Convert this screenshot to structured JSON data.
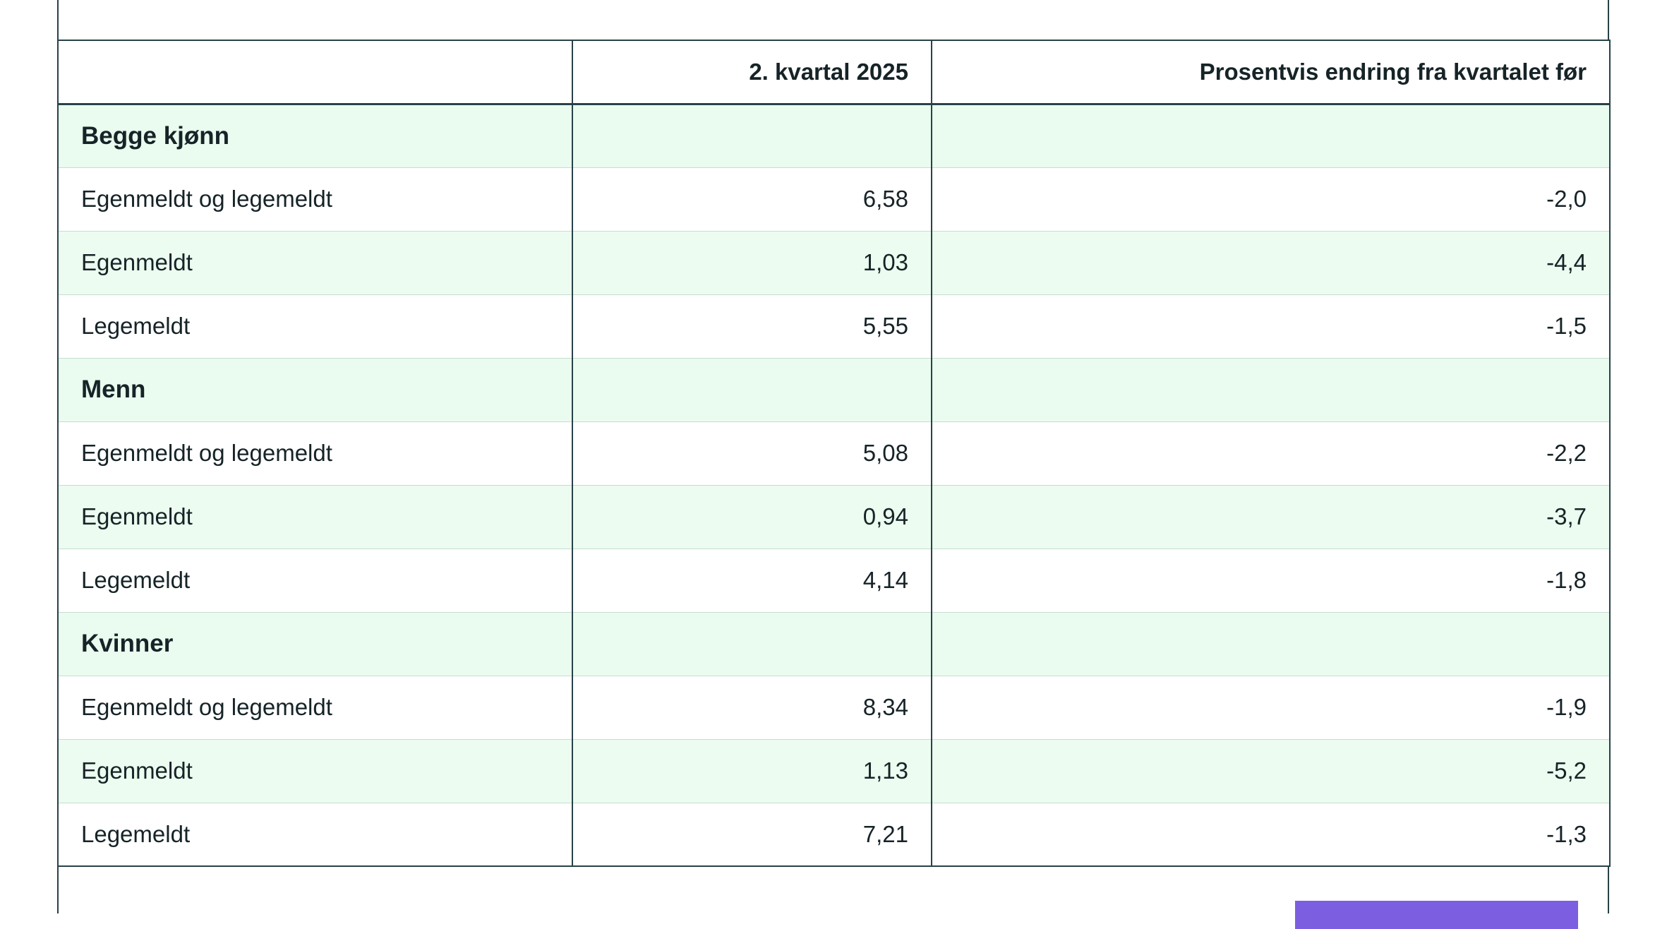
{
  "table": {
    "headers": [
      "",
      "2. kvartal 2025",
      "Prosentvis endring fra kvartalet før"
    ],
    "groups": [
      {
        "name": "Begge kjønn",
        "rows": [
          {
            "label": "Egenmeldt og legemeldt",
            "value": "6,58",
            "change": "-2,0"
          },
          {
            "label": "Egenmeldt",
            "value": "1,03",
            "change": "-4,4"
          },
          {
            "label": "Legemeldt",
            "value": "5,55",
            "change": "-1,5"
          }
        ]
      },
      {
        "name": "Menn",
        "rows": [
          {
            "label": "Egenmeldt og legemeldt",
            "value": "5,08",
            "change": "-2,2"
          },
          {
            "label": "Egenmeldt",
            "value": "0,94",
            "change": "-3,7"
          },
          {
            "label": "Legemeldt",
            "value": "4,14",
            "change": "-1,8"
          }
        ]
      },
      {
        "name": "Kvinner",
        "rows": [
          {
            "label": "Egenmeldt og legemeldt",
            "value": "8,34",
            "change": "-1,9"
          },
          {
            "label": "Egenmeldt",
            "value": "1,13",
            "change": "-5,2"
          },
          {
            "label": "Legemeldt",
            "value": "7,21",
            "change": "-1,3"
          }
        ]
      }
    ]
  },
  "colors": {
    "border": "#274247",
    "shaded_row": "#ecfcf0",
    "button": "#7c5fe0"
  }
}
